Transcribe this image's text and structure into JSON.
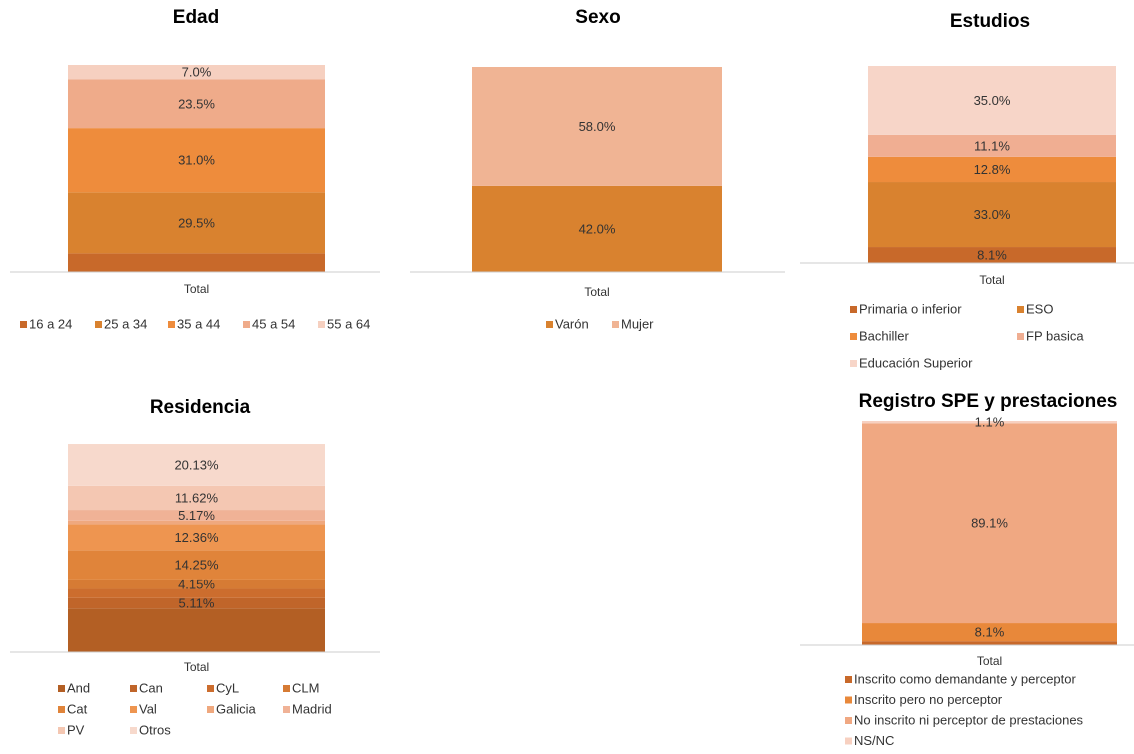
{
  "chart_data": [
    {
      "type": "bar",
      "stacked": true,
      "title": "Edad",
      "categories": [
        "Total"
      ],
      "ylim": [
        0,
        100
      ],
      "series": [
        {
          "name": "16 a 24",
          "color": "#c8692a",
          "values": [
            9.0
          ]
        },
        {
          "name": "25 a 34",
          "color": "#d9822f",
          "values": [
            29.5
          ],
          "value_labels": [
            "29.5%"
          ]
        },
        {
          "name": "35 a 44",
          "color": "#ee8c3c",
          "values": [
            31.0
          ],
          "value_labels": [
            "31.0%"
          ]
        },
        {
          "name": "45 a 54",
          "color": "#efab8a",
          "values": [
            23.5
          ],
          "value_labels": [
            "23.5%"
          ]
        },
        {
          "name": "55 a 64",
          "color": "#f6d0c0",
          "values": [
            7.0
          ],
          "value_labels": [
            "7.0%"
          ]
        }
      ]
    },
    {
      "type": "bar",
      "stacked": true,
      "title": "Sexo",
      "categories": [
        "Total"
      ],
      "ylim": [
        0,
        100
      ],
      "series": [
        {
          "name": "Varón",
          "color": "#d9822f",
          "values": [
            42.0
          ],
          "value_labels": [
            "42.0%"
          ]
        },
        {
          "name": "Mujer",
          "color": "#f0b494",
          "values": [
            58.0
          ],
          "value_labels": [
            "58.0%"
          ]
        }
      ]
    },
    {
      "type": "bar",
      "stacked": true,
      "title": "Estudios",
      "categories": [
        "Total"
      ],
      "ylim": [
        0,
        100
      ],
      "series": [
        {
          "name": "Primaria o inferior",
          "color": "#c8692a",
          "values": [
            8.1
          ],
          "value_labels": [
            "8.1%"
          ]
        },
        {
          "name": "ESO",
          "color": "#d9822f",
          "values": [
            33.0
          ],
          "value_labels": [
            "33.0%"
          ]
        },
        {
          "name": "Bachiller",
          "color": "#ee8c3c",
          "values": [
            12.8
          ],
          "value_labels": [
            "12.8%"
          ]
        },
        {
          "name": "FP basica",
          "color": "#f0ae92",
          "values": [
            11.1
          ],
          "value_labels": [
            "11.1%"
          ]
        },
        {
          "name": "Educación Superior",
          "color": "#f7d5c8",
          "values": [
            35.0
          ],
          "value_labels": [
            "35.0%"
          ]
        }
      ]
    },
    {
      "type": "bar",
      "stacked": true,
      "title": "Residencia",
      "categories": [
        "Total"
      ],
      "ylim": [
        0,
        100
      ],
      "series": [
        {
          "name": "And",
          "color": "#b35f24",
          "values": [
            21.0
          ]
        },
        {
          "name": "Can",
          "color": "#c0652a",
          "values": [
            5.11
          ],
          "value_labels": [
            "5.11%"
          ]
        },
        {
          "name": "CyL",
          "color": "#cc6d2e",
          "values": [
            4.4
          ]
        },
        {
          "name": "CLM",
          "color": "#d67b34",
          "values": [
            4.15
          ],
          "value_labels": [
            "4.15%"
          ]
        },
        {
          "name": "Cat",
          "color": "#e0843a",
          "values": [
            14.25
          ],
          "value_labels": [
            "14.25%"
          ]
        },
        {
          "name": "Val",
          "color": "#ee9550",
          "values": [
            12.36
          ],
          "value_labels": [
            "12.36%"
          ]
        },
        {
          "name": "Galicia",
          "color": "#efa87e",
          "values": [
            1.8
          ]
        },
        {
          "name": "Madrid",
          "color": "#f0b296",
          "values": [
            5.17
          ],
          "value_labels": [
            "5.17%"
          ]
        },
        {
          "name": "PV",
          "color": "#f4c7b2",
          "values": [
            11.62
          ],
          "value_labels": [
            "11.62%"
          ]
        },
        {
          "name": "Otros",
          "color": "#f7d9cc",
          "values": [
            20.13
          ],
          "value_labels": [
            "20.13%"
          ]
        }
      ]
    },
    {
      "type": "bar",
      "stacked": true,
      "title": "Registro SPE y prestaciones",
      "categories": [
        "Total"
      ],
      "ylim": [
        0,
        100
      ],
      "series": [
        {
          "name": "Inscrito como demandante y perceptor",
          "color": "#c8692a",
          "values": [
            1.7
          ]
        },
        {
          "name": "Inscrito pero no perceptor",
          "color": "#e8883a",
          "values": [
            8.1
          ],
          "value_labels": [
            "8.1%"
          ]
        },
        {
          "name": "No inscrito ni perceptor de prestaciones",
          "color": "#f0a882",
          "values": [
            89.1
          ],
          "value_labels": [
            "89.1%"
          ]
        },
        {
          "name": "NS/NC",
          "color": "#f7d0c0",
          "values": [
            1.1
          ],
          "value_labels": [
            "1.1%"
          ]
        }
      ]
    }
  ]
}
